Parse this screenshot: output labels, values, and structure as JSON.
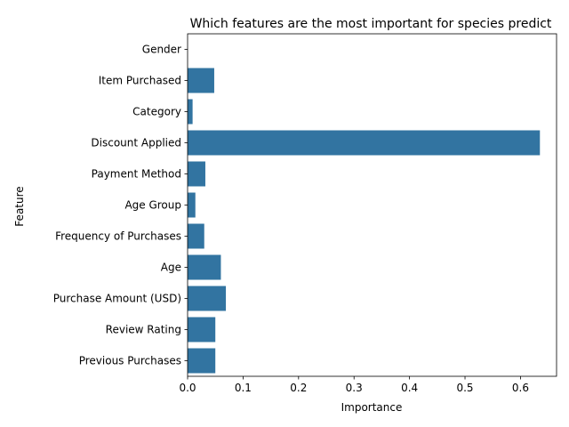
{
  "chart_data": {
    "type": "bar",
    "orientation": "horizontal",
    "title": "Which features are the most important for species predict",
    "xlabel": "Importance",
    "ylabel": "Feature",
    "categories": [
      "Gender",
      "Item Purchased",
      "Category",
      "Discount Applied",
      "Payment Method",
      "Age Group",
      "Frequency of Purchases",
      "Age",
      "Purchase Amount (USD)",
      "Review Rating",
      "Previous Purchases"
    ],
    "values": [
      0.0,
      0.048,
      0.009,
      0.635,
      0.032,
      0.014,
      0.03,
      0.06,
      0.069,
      0.05,
      0.05
    ],
    "xlim": [
      0,
      0.665
    ],
    "xticks": [
      0,
      0.1,
      0.2,
      0.3,
      0.4,
      0.5,
      0.6
    ],
    "xtick_labels": [
      "0.0",
      "0.1",
      "0.2",
      "0.3",
      "0.4",
      "0.5",
      "0.6"
    ],
    "bar_color": "#3274a1",
    "grid": false,
    "legend": "none"
  }
}
